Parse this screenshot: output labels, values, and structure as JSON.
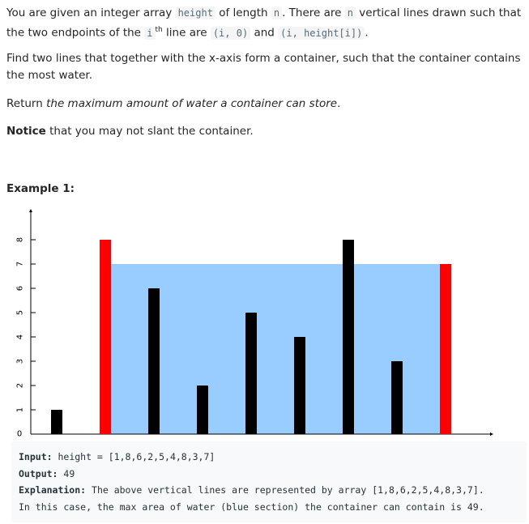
{
  "problem": {
    "p1": {
      "a": "You are given an integer array ",
      "code1": "height",
      "b": " of length ",
      "code2": "n",
      "c": ". There are ",
      "code3": "n",
      "d": " vertical lines drawn such that the two endpoints of the ",
      "sup_base": "i",
      "sup": "th",
      "e": " line are ",
      "code4": "(i, 0)",
      "f": " and ",
      "code5": "(i, height[i])",
      "g": "."
    },
    "p2": "Find two lines that together with the x-axis form a container, such that the container contains the most water.",
    "p3": {
      "a": "Return ",
      "em": "the maximum amount of water a container can store",
      "b": "."
    },
    "p4": {
      "strong": "Notice",
      "rest": " that you may not slant the container."
    }
  },
  "example": {
    "title": "Example 1:",
    "input_label": "Input:",
    "input_value": " height = [1,8,6,2,5,4,8,3,7]",
    "output_label": "Output:",
    "output_value": " 49",
    "explanation_label": "Explanation:",
    "explanation_value": " The above vertical lines are represented by array [1,8,6,2,5,4,8,3,7].",
    "explanation_line2": "In this case, the max area of water (blue section) the container can contain is 49."
  },
  "chart_data": {
    "type": "bar",
    "categories": [
      "0",
      "1",
      "2",
      "3",
      "4",
      "5",
      "6",
      "7",
      "8"
    ],
    "values": [
      1,
      8,
      6,
      2,
      5,
      4,
      8,
      3,
      7
    ],
    "highlight_indices": [
      1,
      8
    ],
    "water_level": 7,
    "ylim": [
      0,
      8
    ],
    "yticks": [
      "0",
      "1",
      "2",
      "3",
      "4",
      "5",
      "6",
      "7",
      "8"
    ],
    "colors": {
      "bar": "#000000",
      "highlight": "#ff0000",
      "water": "#99ccff",
      "axis": "#000000"
    }
  }
}
